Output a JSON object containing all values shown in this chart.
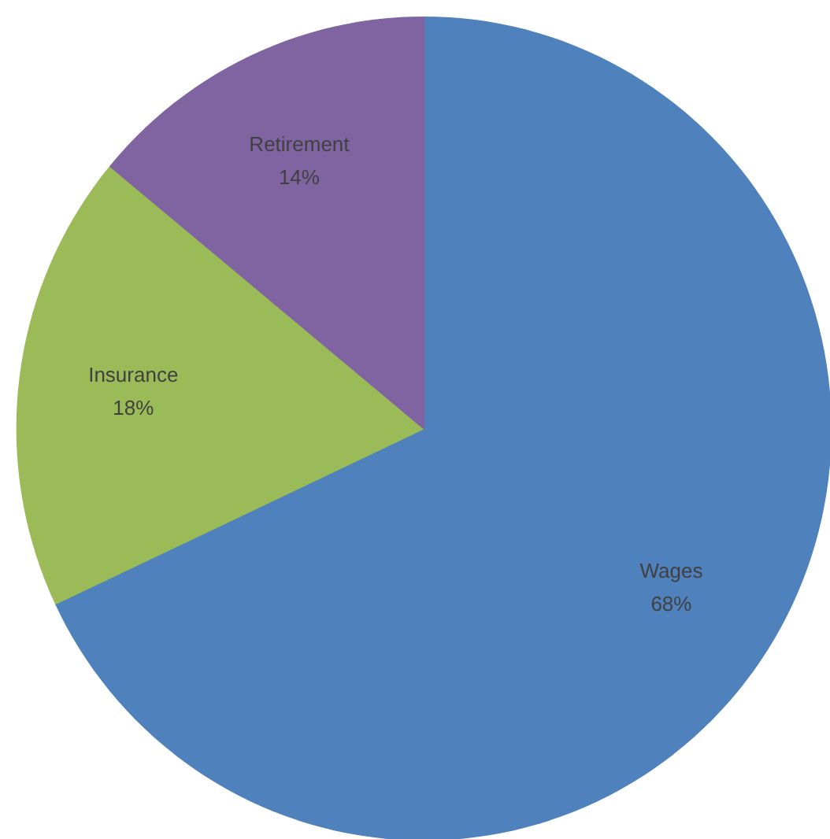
{
  "chart_data": {
    "type": "pie",
    "categories": [
      "Wages",
      "Insurance",
      "Retirement"
    ],
    "values": [
      68,
      18,
      14
    ],
    "colors": [
      "#4f81bd",
      "#9bbb59",
      "#8064a2"
    ],
    "value_labels": [
      "68%",
      "18%",
      "14%"
    ],
    "legend": false
  }
}
